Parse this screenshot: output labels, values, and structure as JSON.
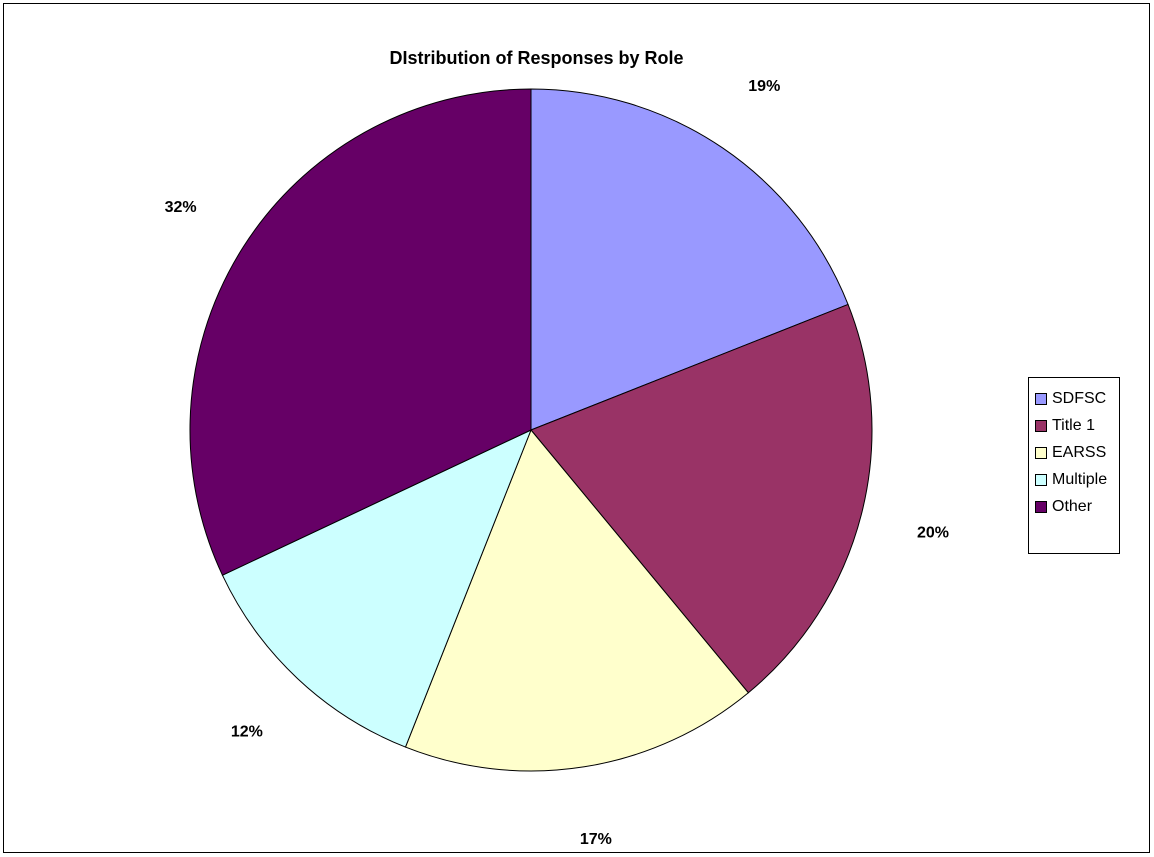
{
  "chart_data": {
    "type": "pie",
    "title": "DIstribution of Responses by Role",
    "categories": [
      "SDFSC",
      "Title 1",
      "EARSS",
      "Multiple",
      "Other"
    ],
    "values": [
      19,
      20,
      17,
      12,
      32
    ],
    "labels": [
      "19%",
      "20%",
      "17%",
      "12%",
      "32%"
    ],
    "colors": [
      "#9999ff",
      "#993366",
      "#ffffcc",
      "#ccffff",
      "#660066"
    ],
    "start_angle": "12 o'clock",
    "direction": "clockwise",
    "legend_position": "right"
  }
}
